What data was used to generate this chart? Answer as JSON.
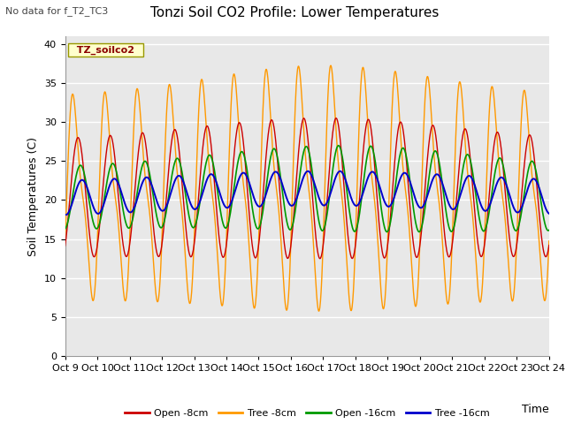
{
  "title": "Tonzi Soil CO2 Profile: Lower Temperatures",
  "note": "No data for f_T2_TC3",
  "ylabel": "Soil Temperatures (C)",
  "xlabel": "Time",
  "legend_label": "TZ_soilco2",
  "ylim": [
    0,
    41
  ],
  "yticks": [
    0,
    5,
    10,
    15,
    20,
    25,
    30,
    35,
    40
  ],
  "xtick_labels": [
    "Oct 9",
    "Oct 10",
    "Oct 11",
    "Oct 12",
    "Oct 13",
    "Oct 14",
    "Oct 15",
    "Oct 16",
    "Oct 17",
    "Oct 18",
    "Oct 19",
    "Oct 20",
    "Oct 21",
    "Oct 22",
    "Oct 23",
    "Oct 24"
  ],
  "series_colors": {
    "open_8cm": "#cc0000",
    "tree_8cm": "#ff9900",
    "open_16cm": "#009900",
    "tree_16cm": "#0000cc"
  },
  "series_labels": [
    "Open -8cm",
    "Tree -8cm",
    "Open -16cm",
    "Tree -16cm"
  ],
  "plot_bg_color": "#e8e8e8",
  "title_fontsize": 11,
  "tick_fontsize": 8,
  "grid_color": "#ffffff",
  "n_days": 15
}
